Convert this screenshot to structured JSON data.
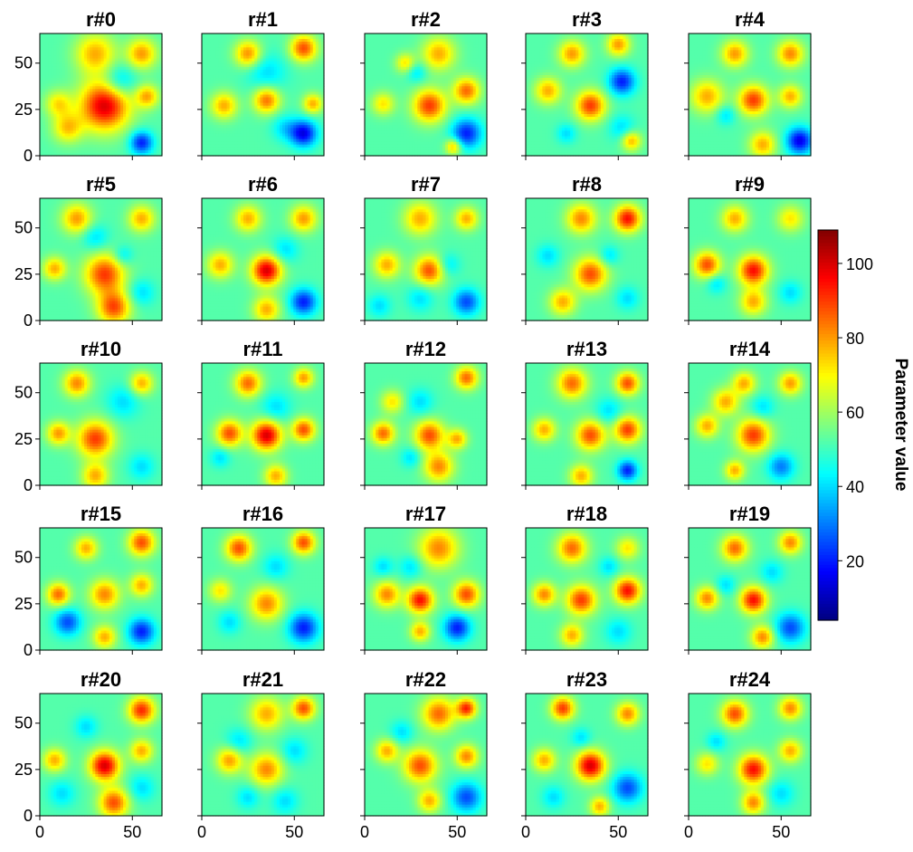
{
  "chart_data": {
    "type": "heatmap",
    "layout": {
      "rows": 5,
      "cols": 5
    },
    "panels": [
      {
        "title": "r#0",
        "blobs": [
          [
            35,
            27,
            15,
            100
          ],
          [
            15,
            15,
            9,
            75
          ],
          [
            30,
            55,
            12,
            78
          ],
          [
            55,
            55,
            9,
            80
          ],
          [
            55,
            7,
            7,
            20
          ],
          [
            10,
            28,
            8,
            72
          ],
          [
            43,
            40,
            10,
            35
          ],
          [
            58,
            32,
            7,
            78
          ]
        ]
      },
      {
        "title": "r#1",
        "blobs": [
          [
            55,
            12,
            8,
            15
          ],
          [
            35,
            30,
            8,
            85
          ],
          [
            55,
            58,
            8,
            88
          ],
          [
            12,
            27,
            8,
            78
          ],
          [
            25,
            55,
            8,
            82
          ],
          [
            35,
            45,
            12,
            40
          ],
          [
            60,
            28,
            6,
            78
          ],
          [
            45,
            15,
            8,
            40
          ]
        ]
      },
      {
        "title": "r#2",
        "blobs": [
          [
            55,
            12,
            9,
            20
          ],
          [
            35,
            27,
            10,
            90
          ],
          [
            55,
            35,
            8,
            85
          ],
          [
            40,
            55,
            10,
            78
          ],
          [
            10,
            28,
            7,
            72
          ],
          [
            22,
            50,
            6,
            72
          ],
          [
            28,
            45,
            6,
            40
          ],
          [
            48,
            5,
            5,
            78
          ]
        ]
      },
      {
        "title": "r#3",
        "blobs": [
          [
            52,
            40,
            8,
            20
          ],
          [
            35,
            27,
            9,
            90
          ],
          [
            12,
            35,
            8,
            78
          ],
          [
            25,
            55,
            8,
            80
          ],
          [
            50,
            60,
            7,
            80
          ],
          [
            52,
            15,
            8,
            40
          ],
          [
            57,
            8,
            6,
            78
          ],
          [
            22,
            12,
            6,
            40
          ]
        ]
      },
      {
        "title": "r#4",
        "blobs": [
          [
            60,
            8,
            8,
            15
          ],
          [
            35,
            30,
            9,
            90
          ],
          [
            10,
            32,
            10,
            78
          ],
          [
            55,
            55,
            8,
            82
          ],
          [
            25,
            55,
            8,
            80
          ],
          [
            40,
            6,
            8,
            78
          ],
          [
            55,
            32,
            7,
            78
          ],
          [
            20,
            22,
            6,
            40
          ]
        ]
      },
      {
        "title": "r#5",
        "blobs": [
          [
            35,
            25,
            12,
            90
          ],
          [
            20,
            55,
            9,
            80
          ],
          [
            55,
            55,
            8,
            78
          ],
          [
            40,
            7,
            10,
            88
          ],
          [
            55,
            15,
            8,
            40
          ],
          [
            8,
            28,
            7,
            78
          ],
          [
            30,
            45,
            8,
            40
          ],
          [
            45,
            35,
            6,
            40
          ]
        ]
      },
      {
        "title": "r#6",
        "blobs": [
          [
            35,
            27,
            9,
            100
          ],
          [
            55,
            10,
            8,
            20
          ],
          [
            25,
            55,
            8,
            78
          ],
          [
            55,
            55,
            8,
            80
          ],
          [
            10,
            30,
            8,
            78
          ],
          [
            35,
            6,
            8,
            78
          ],
          [
            45,
            38,
            8,
            40
          ]
        ]
      },
      {
        "title": "r#7",
        "blobs": [
          [
            35,
            27,
            9,
            88
          ],
          [
            55,
            10,
            8,
            25
          ],
          [
            30,
            55,
            10,
            78
          ],
          [
            55,
            55,
            7,
            78
          ],
          [
            12,
            30,
            8,
            78
          ],
          [
            30,
            12,
            8,
            40
          ],
          [
            45,
            30,
            7,
            40
          ],
          [
            8,
            8,
            7,
            40
          ]
        ]
      },
      {
        "title": "r#8",
        "blobs": [
          [
            35,
            25,
            10,
            88
          ],
          [
            55,
            55,
            8,
            95
          ],
          [
            30,
            55,
            9,
            82
          ],
          [
            12,
            35,
            7,
            40
          ],
          [
            20,
            10,
            8,
            78
          ],
          [
            55,
            12,
            7,
            40
          ],
          [
            45,
            35,
            6,
            40
          ]
        ]
      },
      {
        "title": "r#9",
        "blobs": [
          [
            35,
            27,
            9,
            95
          ],
          [
            10,
            30,
            8,
            88
          ],
          [
            25,
            55,
            8,
            78
          ],
          [
            55,
            55,
            8,
            72
          ],
          [
            55,
            15,
            7,
            40
          ],
          [
            35,
            10,
            8,
            78
          ],
          [
            15,
            20,
            6,
            40
          ]
        ]
      },
      {
        "title": "r#10",
        "blobs": [
          [
            30,
            25,
            11,
            90
          ],
          [
            20,
            55,
            8,
            82
          ],
          [
            45,
            45,
            10,
            40
          ],
          [
            55,
            55,
            7,
            78
          ],
          [
            10,
            28,
            7,
            80
          ],
          [
            30,
            5,
            8,
            78
          ],
          [
            55,
            10,
            8,
            40
          ]
        ]
      },
      {
        "title": "r#11",
        "blobs": [
          [
            35,
            27,
            9,
            100
          ],
          [
            15,
            28,
            8,
            88
          ],
          [
            25,
            55,
            8,
            85
          ],
          [
            55,
            30,
            7,
            88
          ],
          [
            40,
            5,
            7,
            78
          ],
          [
            40,
            42,
            9,
            40
          ],
          [
            55,
            58,
            6,
            80
          ],
          [
            10,
            15,
            6,
            40
          ]
        ]
      },
      {
        "title": "r#12",
        "blobs": [
          [
            35,
            27,
            9,
            88
          ],
          [
            10,
            28,
            7,
            85
          ],
          [
            55,
            58,
            7,
            85
          ],
          [
            40,
            10,
            9,
            82
          ],
          [
            30,
            45,
            8,
            40
          ],
          [
            15,
            45,
            7,
            72
          ],
          [
            50,
            25,
            6,
            78
          ],
          [
            25,
            15,
            6,
            40
          ]
        ]
      },
      {
        "title": "r#13",
        "blobs": [
          [
            35,
            27,
            9,
            88
          ],
          [
            55,
            30,
            8,
            90
          ],
          [
            25,
            55,
            9,
            85
          ],
          [
            55,
            55,
            7,
            88
          ],
          [
            55,
            8,
            6,
            20
          ],
          [
            10,
            30,
            7,
            78
          ],
          [
            30,
            5,
            7,
            78
          ],
          [
            45,
            40,
            8,
            40
          ]
        ]
      },
      {
        "title": "r#14",
        "blobs": [
          [
            35,
            27,
            10,
            90
          ],
          [
            20,
            45,
            8,
            78
          ],
          [
            55,
            55,
            7,
            80
          ],
          [
            50,
            10,
            8,
            30
          ],
          [
            10,
            32,
            7,
            78
          ],
          [
            30,
            55,
            7,
            78
          ],
          [
            40,
            42,
            7,
            40
          ],
          [
            25,
            8,
            6,
            78
          ]
        ]
      },
      {
        "title": "r#15",
        "blobs": [
          [
            55,
            10,
            8,
            20
          ],
          [
            15,
            15,
            8,
            25
          ],
          [
            55,
            58,
            8,
            88
          ],
          [
            35,
            30,
            9,
            82
          ],
          [
            10,
            30,
            7,
            85
          ],
          [
            25,
            55,
            7,
            78
          ],
          [
            35,
            7,
            7,
            78
          ],
          [
            55,
            35,
            7,
            78
          ]
        ]
      },
      {
        "title": "r#16",
        "blobs": [
          [
            55,
            12,
            9,
            20
          ],
          [
            35,
            25,
            10,
            82
          ],
          [
            20,
            55,
            8,
            88
          ],
          [
            55,
            58,
            7,
            88
          ],
          [
            40,
            45,
            8,
            40
          ],
          [
            15,
            15,
            7,
            40
          ],
          [
            10,
            32,
            7,
            72
          ]
        ]
      },
      {
        "title": "r#17",
        "blobs": [
          [
            30,
            27,
            8,
            95
          ],
          [
            55,
            30,
            8,
            88
          ],
          [
            40,
            55,
            12,
            82
          ],
          [
            12,
            30,
            8,
            82
          ],
          [
            50,
            12,
            8,
            20
          ],
          [
            25,
            45,
            7,
            40
          ],
          [
            30,
            10,
            6,
            78
          ],
          [
            10,
            45,
            6,
            40
          ]
        ]
      },
      {
        "title": "r#18",
        "blobs": [
          [
            55,
            32,
            8,
            95
          ],
          [
            30,
            27,
            9,
            90
          ],
          [
            25,
            55,
            9,
            85
          ],
          [
            10,
            30,
            7,
            82
          ],
          [
            50,
            10,
            8,
            40
          ],
          [
            55,
            55,
            7,
            72
          ],
          [
            45,
            45,
            6,
            40
          ],
          [
            25,
            8,
            7,
            78
          ]
        ]
      },
      {
        "title": "r#19",
        "blobs": [
          [
            35,
            27,
            8,
            95
          ],
          [
            55,
            12,
            9,
            25
          ],
          [
            25,
            55,
            8,
            85
          ],
          [
            55,
            58,
            7,
            82
          ],
          [
            10,
            28,
            7,
            82
          ],
          [
            40,
            7,
            7,
            82
          ],
          [
            45,
            42,
            7,
            40
          ],
          [
            20,
            35,
            6,
            40
          ]
        ]
      },
      {
        "title": "r#20",
        "blobs": [
          [
            35,
            27,
            9,
            100
          ],
          [
            55,
            57,
            8,
            92
          ],
          [
            40,
            7,
            9,
            88
          ],
          [
            12,
            12,
            8,
            40
          ],
          [
            55,
            15,
            8,
            40
          ],
          [
            8,
            30,
            7,
            78
          ],
          [
            25,
            48,
            7,
            40
          ],
          [
            55,
            35,
            7,
            78
          ]
        ]
      },
      {
        "title": "r#21",
        "blobs": [
          [
            35,
            25,
            10,
            82
          ],
          [
            15,
            30,
            8,
            80
          ],
          [
            55,
            58,
            7,
            88
          ],
          [
            35,
            55,
            10,
            78
          ],
          [
            20,
            40,
            8,
            40
          ],
          [
            50,
            35,
            8,
            40
          ],
          [
            45,
            8,
            8,
            40
          ],
          [
            25,
            10,
            7,
            40
          ]
        ]
      },
      {
        "title": "r#22",
        "blobs": [
          [
            30,
            27,
            10,
            88
          ],
          [
            55,
            10,
            9,
            25
          ],
          [
            40,
            55,
            10,
            85
          ],
          [
            55,
            58,
            6,
            92
          ],
          [
            12,
            35,
            7,
            78
          ],
          [
            55,
            32,
            7,
            82
          ],
          [
            35,
            8,
            7,
            78
          ],
          [
            20,
            45,
            7,
            40
          ]
        ]
      },
      {
        "title": "r#23",
        "blobs": [
          [
            35,
            27,
            9,
            100
          ],
          [
            55,
            15,
            9,
            25
          ],
          [
            20,
            58,
            7,
            90
          ],
          [
            55,
            55,
            7,
            82
          ],
          [
            10,
            30,
            7,
            78
          ],
          [
            15,
            10,
            7,
            40
          ],
          [
            30,
            42,
            6,
            40
          ],
          [
            40,
            5,
            6,
            78
          ]
        ]
      },
      {
        "title": "r#24",
        "blobs": [
          [
            35,
            25,
            9,
            95
          ],
          [
            25,
            55,
            8,
            88
          ],
          [
            55,
            58,
            7,
            82
          ],
          [
            50,
            12,
            8,
            40
          ],
          [
            35,
            7,
            7,
            82
          ],
          [
            10,
            28,
            7,
            72
          ],
          [
            15,
            40,
            6,
            40
          ],
          [
            55,
            35,
            7,
            78
          ]
        ]
      }
    ],
    "baseline": 52,
    "x_range": [
      0,
      66
    ],
    "y_range": [
      0,
      66
    ],
    "x_ticks": [
      "0",
      "50"
    ],
    "y_ticks": [
      "0",
      "25",
      "50"
    ],
    "x_tick_values": [
      0,
      50
    ],
    "y_tick_values": [
      0,
      25,
      50
    ],
    "colormap": "jet",
    "colorbar": {
      "label": "Parameter value",
      "range": [
        4,
        109
      ],
      "ticks": [
        "20",
        "40",
        "60",
        "80",
        "100"
      ],
      "tick_values": [
        20,
        40,
        60,
        80,
        100
      ]
    }
  }
}
